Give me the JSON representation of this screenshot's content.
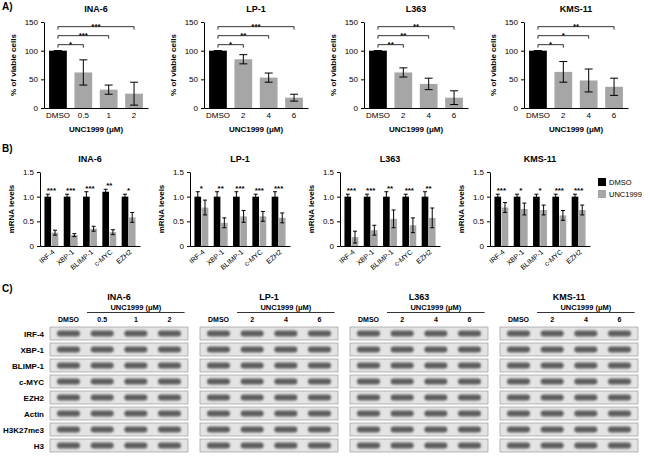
{
  "panel_labels": [
    "A)",
    "B)",
    "C)"
  ],
  "chart_data": [
    {
      "type": "bar",
      "title": "INA-6",
      "y_label": "% of viable cells",
      "x_label": "UNC1999 (μM)",
      "categories": [
        "DMSO",
        "0.5",
        "1",
        "2"
      ],
      "values": [
        100,
        62,
        32,
        25
      ],
      "errors": [
        0,
        22,
        8,
        20
      ],
      "significance": [
        null,
        "*",
        "***",
        "***"
      ],
      "colors": [
        "#000000",
        "#a6a6a6",
        "#a6a6a6",
        "#a6a6a6"
      ],
      "ylim": [
        0,
        150
      ],
      "yticks": [
        0,
        50,
        100,
        150
      ]
    },
    {
      "type": "bar",
      "title": "LP-1",
      "y_label": "% of viable cells",
      "x_label": "UNC1999 (μM)",
      "categories": [
        "DMSO",
        "2",
        "4",
        "6"
      ],
      "values": [
        100,
        85,
        53,
        18
      ],
      "errors": [
        0,
        8,
        8,
        6
      ],
      "significance": [
        null,
        "*",
        "**",
        "***"
      ],
      "colors": [
        "#000000",
        "#a6a6a6",
        "#a6a6a6",
        "#a6a6a6"
      ],
      "ylim": [
        0,
        150
      ],
      "yticks": [
        0,
        50,
        100,
        150
      ]
    },
    {
      "type": "bar",
      "title": "L363",
      "y_label": "% of viable cells",
      "x_label": "UNC1999 (μM)",
      "categories": [
        "DMSO",
        "2",
        "4",
        "6"
      ],
      "values": [
        100,
        62,
        42,
        18
      ],
      "errors": [
        0,
        8,
        10,
        12
      ],
      "significance": [
        null,
        "**",
        "**",
        "**"
      ],
      "colors": [
        "#000000",
        "#a6a6a6",
        "#a6a6a6",
        "#a6a6a6"
      ],
      "ylim": [
        0,
        150
      ],
      "yticks": [
        0,
        50,
        100,
        150
      ]
    },
    {
      "type": "bar",
      "title": "KMS-11",
      "y_label": "% of viable cells",
      "x_label": "UNC1999 (μM)",
      "categories": [
        "DMSO",
        "2",
        "4",
        "6"
      ],
      "values": [
        100,
        63,
        48,
        37
      ],
      "errors": [
        0,
        18,
        20,
        15
      ],
      "significance": [
        null,
        "*",
        "*",
        "**"
      ],
      "colors": [
        "#000000",
        "#a6a6a6",
        "#a6a6a6",
        "#a6a6a6"
      ],
      "ylim": [
        0,
        150
      ],
      "yticks": [
        0,
        50,
        100,
        150
      ]
    },
    {
      "type": "bar",
      "title": "INA-6",
      "y_label": "mRNA levels",
      "categories": [
        "IRF-4",
        "XBP-1",
        "BLIMP-1",
        "c-MYC",
        "EZH2"
      ],
      "series": [
        {
          "name": "DMSO",
          "color": "#000000",
          "values": [
            1.0,
            1.0,
            1.0,
            1.1,
            1.0
          ],
          "errors": [
            0.05,
            0.05,
            0.1,
            0.05,
            0.05
          ]
        },
        {
          "name": "UNC1999",
          "color": "#a6a6a6",
          "values": [
            0.27,
            0.22,
            0.35,
            0.28,
            0.58
          ],
          "errors": [
            0.05,
            0.03,
            0.05,
            0.05,
            0.1
          ]
        }
      ],
      "significance": [
        "***",
        "***",
        "***",
        "**",
        "*"
      ],
      "ylim": [
        0,
        1.5
      ],
      "yticks": [
        0,
        0.5,
        {
          "value": 1,
          "label": "1.0"
        },
        1.5
      ]
    },
    {
      "type": "bar",
      "title": "LP-1",
      "y_label": "mRNA levels",
      "categories": [
        "IRF-4",
        "XBP-1",
        "BLIMP-1",
        "c-MYC",
        "EZH2"
      ],
      "series": [
        {
          "name": "DMSO",
          "color": "#000000",
          "values": [
            1.0,
            1.0,
            1.0,
            1.0,
            1.0
          ],
          "errors": [
            0.1,
            0.1,
            0.1,
            0.05,
            0.1
          ]
        },
        {
          "name": "UNC1999",
          "color": "#a6a6a6",
          "values": [
            0.78,
            0.47,
            0.6,
            0.6,
            0.57
          ],
          "errors": [
            0.15,
            0.1,
            0.12,
            0.1,
            0.1
          ]
        }
      ],
      "significance": [
        "*",
        "**",
        "***",
        "***",
        "***"
      ],
      "ylim": [
        0,
        1.5
      ],
      "yticks": [
        0,
        0.5,
        {
          "value": 1,
          "label": "1.0"
        },
        1.5
      ]
    },
    {
      "type": "bar",
      "title": "L363",
      "y_label": "mRNA levels",
      "categories": [
        "IRF-4",
        "XBP-1",
        "BLIMP-1",
        "c-MYC",
        "EZH2"
      ],
      "series": [
        {
          "name": "DMSO",
          "color": "#000000",
          "values": [
            1.0,
            1.0,
            1.0,
            1.0,
            1.0
          ],
          "errors": [
            0.05,
            0.05,
            0.1,
            0.05,
            0.1
          ]
        },
        {
          "name": "UNC1999",
          "color": "#a6a6a6",
          "values": [
            0.18,
            0.32,
            0.55,
            0.42,
            0.57
          ],
          "errors": [
            0.12,
            0.1,
            0.18,
            0.15,
            0.2
          ]
        }
      ],
      "significance": [
        "***",
        "***",
        "**",
        "***",
        "**"
      ],
      "ylim": [
        0,
        1.5
      ],
      "yticks": [
        0,
        0.5,
        {
          "value": 1,
          "label": "1.0"
        },
        1.5
      ]
    },
    {
      "type": "bar",
      "title": "KMS-11",
      "y_label": "mRNA levels",
      "categories": [
        "IRF-4",
        "XBP-1",
        "BLIMP-1",
        "c-MYC",
        "EZH2"
      ],
      "series": [
        {
          "name": "DMSO",
          "color": "#000000",
          "values": [
            1.0,
            1.0,
            1.0,
            1.0,
            1.0
          ],
          "errors": [
            0.05,
            0.05,
            0.05,
            0.05,
            0.05
          ]
        },
        {
          "name": "UNC1999",
          "color": "#a6a6a6",
          "values": [
            0.78,
            0.75,
            0.73,
            0.62,
            0.73
          ],
          "errors": [
            0.1,
            0.12,
            0.1,
            0.1,
            0.1
          ]
        }
      ],
      "significance": [
        "***",
        "*",
        "*",
        "***",
        "***"
      ],
      "legend": "right",
      "ylim": [
        0,
        1.5
      ],
      "yticks": [
        0,
        0.5,
        {
          "value": 1,
          "label": "1.0"
        },
        1.5
      ]
    }
  ],
  "blots": {
    "row_labels": [
      "IRF-4",
      "XBP-1",
      "BLIMP-1",
      "c-MYC",
      "EZH2",
      "Actin",
      "H3K27me3",
      "H3"
    ],
    "panels": [
      {
        "title": "INA-6",
        "header": "UNC1999 (μM)",
        "lanes": [
          "DMSO",
          "0.5",
          "1",
          "2"
        ]
      },
      {
        "title": "LP-1",
        "header": "UNC1999 (μM)",
        "lanes": [
          "DMSO",
          "2",
          "4",
          "6"
        ]
      },
      {
        "title": "L363",
        "header": "UNC1999 (μM)",
        "lanes": [
          "DMSO",
          "2",
          "4",
          "6"
        ]
      },
      {
        "title": "KMS-11",
        "header": "UNC1999 (μM)",
        "lanes": [
          "DMSO",
          "2",
          "4",
          "6"
        ]
      }
    ]
  }
}
